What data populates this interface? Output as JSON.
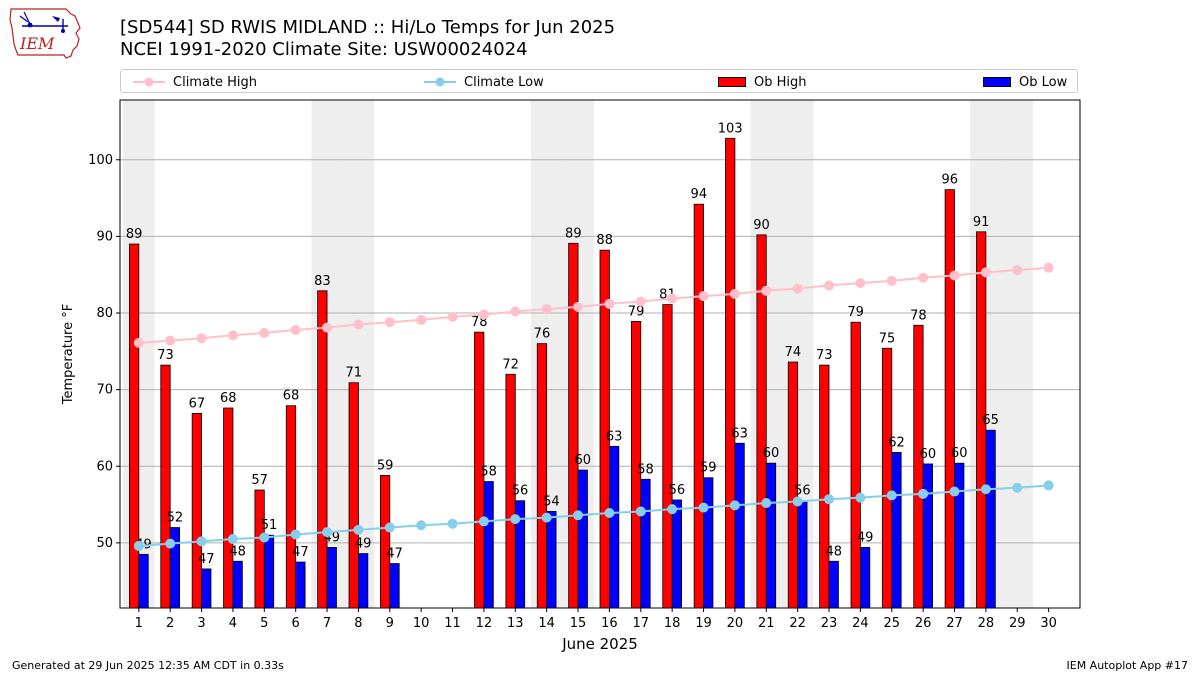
{
  "header": {
    "title_line1": "[SD544] SD RWIS MIDLAND :: Hi/Lo Temps for Jun 2025",
    "title_line2": "NCEI 1991-2020 Climate Site: USW00024024",
    "logo_text": "IEM"
  },
  "legend": {
    "climate_high": "Climate High",
    "climate_low": "Climate Low",
    "ob_high": "Ob High",
    "ob_low": "Ob Low"
  },
  "colors": {
    "ob_high": "#ff0000",
    "ob_low": "#0000ff",
    "climate_high": "#ffc0cb",
    "climate_low": "#87ceeb",
    "weekend_band": "#eeeeee",
    "grid": "#b0b0b0"
  },
  "footer": {
    "generated": "Generated at 29 Jun 2025 12:35 AM CDT in 0.33s",
    "app": "IEM Autoplot App #17"
  },
  "chart_data": {
    "type": "bar",
    "title": "[SD544] SD RWIS MIDLAND :: Hi/Lo Temps for Jun 2025",
    "subtitle": "NCEI 1991-2020 Climate Site: USW00024024",
    "xlabel": "June 2025",
    "ylabel": "Temperature °F",
    "ylim": [
      41.5,
      107.8
    ],
    "yticks": [
      50,
      60,
      70,
      80,
      90,
      100
    ],
    "grid": "y",
    "legend_placement": "top",
    "categories": [
      "1",
      "2",
      "3",
      "4",
      "5",
      "6",
      "7",
      "8",
      "9",
      "10",
      "11",
      "12",
      "13",
      "14",
      "15",
      "16",
      "17",
      "18",
      "19",
      "20",
      "21",
      "22",
      "23",
      "24",
      "25",
      "26",
      "27",
      "28",
      "29",
      "30"
    ],
    "weekend_days": [
      1,
      7,
      8,
      14,
      15,
      21,
      22,
      28,
      29
    ],
    "series": [
      {
        "name": "Ob High",
        "kind": "bar",
        "values": [
          89,
          73,
          67,
          68,
          57,
          68,
          83,
          71,
          59,
          null,
          null,
          78,
          72,
          76,
          89,
          88,
          79,
          81,
          94,
          103,
          90,
          74,
          73,
          79,
          75,
          78,
          96,
          91,
          null,
          null
        ],
        "plotted": [
          89,
          73.2,
          66.9,
          67.6,
          56.9,
          67.9,
          82.9,
          70.9,
          58.8,
          null,
          null,
          77.5,
          72,
          76,
          89.1,
          88.2,
          78.9,
          81.1,
          94.2,
          102.8,
          90.2,
          73.6,
          73.2,
          78.8,
          75.4,
          78.4,
          96.1,
          90.6,
          null,
          null
        ]
      },
      {
        "name": "Ob Low",
        "kind": "bar",
        "values": [
          49,
          52,
          47,
          48,
          51,
          47,
          49,
          49,
          47,
          null,
          null,
          58,
          56,
          54,
          60,
          63,
          58,
          56,
          59,
          63,
          60,
          56,
          48,
          49,
          62,
          60,
          60,
          65,
          null,
          null
        ],
        "plotted": [
          48.5,
          52,
          46.6,
          47.6,
          51,
          47.5,
          49.4,
          48.6,
          47.3,
          null,
          null,
          58,
          55.5,
          54.1,
          59.5,
          62.6,
          58.3,
          55.6,
          58.5,
          63,
          60.4,
          55.5,
          47.6,
          49.4,
          61.8,
          60.3,
          60.4,
          64.7,
          null,
          null
        ]
      },
      {
        "name": "Climate High",
        "kind": "line",
        "values": [
          76.1,
          76.4,
          76.7,
          77.1,
          77.4,
          77.8,
          78.1,
          78.5,
          78.8,
          79.1,
          79.5,
          79.8,
          80.2,
          80.5,
          80.8,
          81.2,
          81.5,
          81.9,
          82.2,
          82.5,
          82.9,
          83.2,
          83.6,
          83.9,
          84.2,
          84.6,
          84.9,
          85.3,
          85.6,
          85.9
        ]
      },
      {
        "name": "Climate Low",
        "kind": "line",
        "values": [
          49.6,
          49.9,
          50.2,
          50.5,
          50.7,
          51.1,
          51.4,
          51.7,
          52.0,
          52.3,
          52.5,
          52.8,
          53.1,
          53.3,
          53.6,
          53.9,
          54.1,
          54.4,
          54.6,
          54.9,
          55.2,
          55.4,
          55.7,
          55.9,
          56.2,
          56.4,
          56.7,
          57.0,
          57.2,
          57.5
        ]
      }
    ]
  }
}
